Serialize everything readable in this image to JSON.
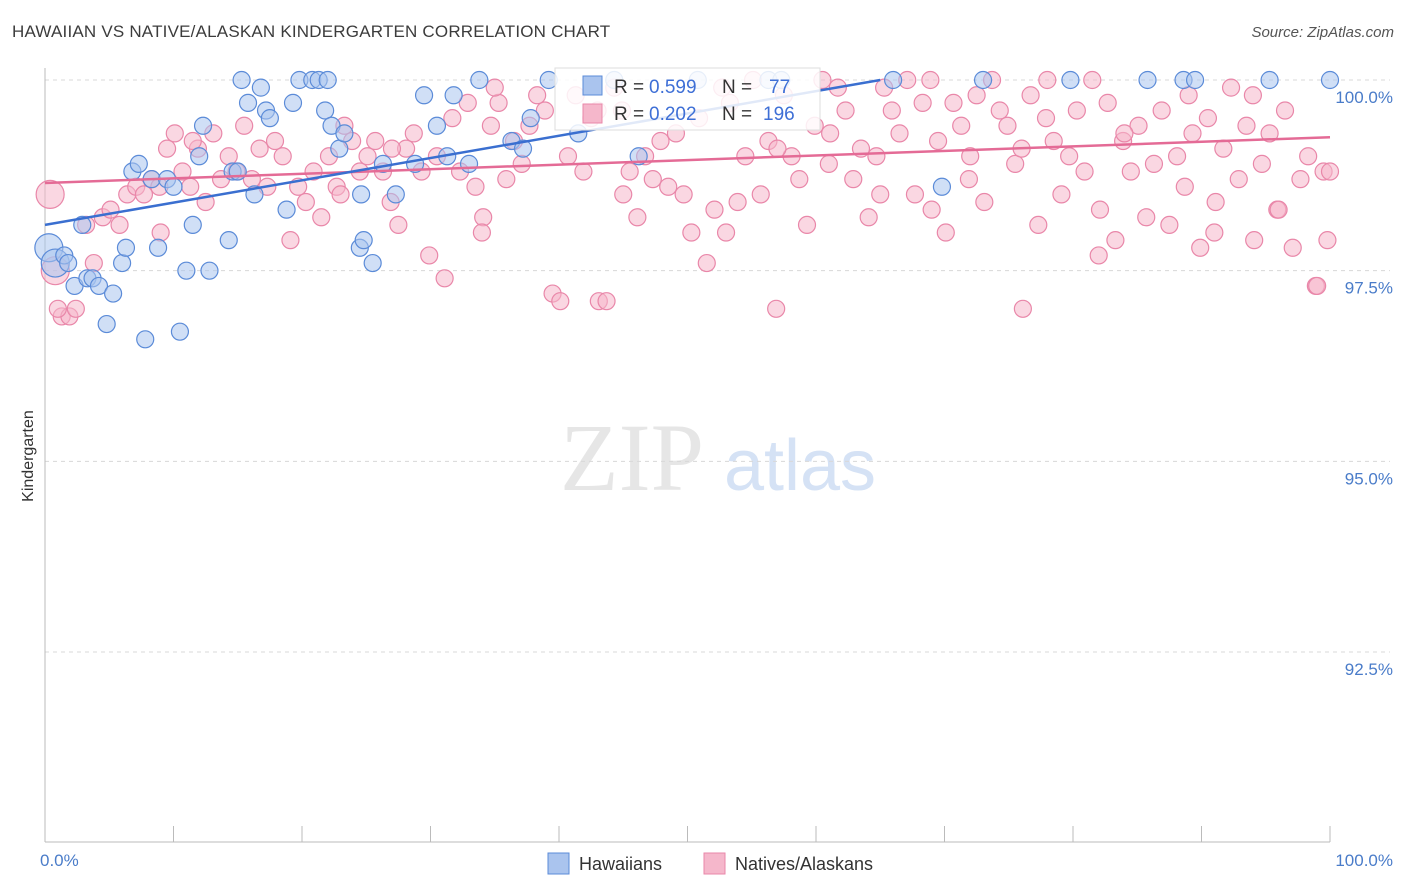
{
  "header": {
    "title": "HAWAIIAN VS NATIVE/ALASKAN KINDERGARTEN CORRELATION CHART",
    "source": "Source: ZipAtlas.com"
  },
  "watermark": {
    "zip": "ZIP",
    "atlas": "atlas"
  },
  "colors": {
    "hawaiians_fill": "#aac4ee",
    "hawaiians_stroke": "#5b8bd8",
    "hawaiians_line": "#3a6fd0",
    "natives_fill": "#f5b7cb",
    "natives_stroke": "#e987a9",
    "natives_line": "#e46b96",
    "tick_label": "#4a7cc9",
    "grid": "#d8d8d8"
  },
  "chart_data": {
    "type": "scatter",
    "title": "HAWAIIAN VS NATIVE/ALASKAN KINDERGARTEN CORRELATION CHART",
    "xlabel": "",
    "ylabel": "Kindergarten",
    "xlim": [
      0,
      100
    ],
    "ylim": [
      90.0,
      100.3
    ],
    "x_tick_labels": [
      "0.0%",
      "100.0%"
    ],
    "y_ticks": [
      92.5,
      95.0,
      97.5,
      100.0
    ],
    "y_tick_labels": [
      "92.5%",
      "95.0%",
      "97.5%",
      "100.0%"
    ],
    "grid": "horizontal dashed",
    "legend_position": "bottom-center",
    "series": [
      {
        "name": "Hawaiians",
        "R": "0.599",
        "N": "77",
        "trend": {
          "x": [
            0,
            65
          ],
          "y": [
            98.1,
            100.0
          ]
        },
        "points": [
          [
            0.3,
            97.8
          ],
          [
            0.8,
            97.6
          ],
          [
            1.5,
            97.7
          ],
          [
            1.8,
            97.6
          ],
          [
            2.3,
            97.3
          ],
          [
            2.9,
            98.1
          ],
          [
            3.3,
            97.4
          ],
          [
            3.7,
            97.4
          ],
          [
            4.2,
            97.3
          ],
          [
            4.8,
            96.8
          ],
          [
            5.3,
            97.2
          ],
          [
            6.0,
            97.6
          ],
          [
            6.3,
            97.8
          ],
          [
            6.8,
            98.8
          ],
          [
            7.3,
            98.9
          ],
          [
            7.8,
            96.6
          ],
          [
            8.3,
            98.7
          ],
          [
            8.8,
            97.8
          ],
          [
            9.5,
            98.7
          ],
          [
            10.0,
            98.6
          ],
          [
            10.5,
            96.7
          ],
          [
            11.0,
            97.5
          ],
          [
            11.5,
            98.1
          ],
          [
            12.0,
            99.0
          ],
          [
            12.3,
            99.4
          ],
          [
            12.8,
            97.5
          ],
          [
            14.3,
            97.9
          ],
          [
            14.6,
            98.8
          ],
          [
            15.0,
            98.8
          ],
          [
            15.3,
            100.0
          ],
          [
            15.8,
            99.7
          ],
          [
            16.3,
            98.5
          ],
          [
            16.8,
            99.9
          ],
          [
            17.2,
            99.6
          ],
          [
            17.5,
            99.5
          ],
          [
            18.8,
            98.3
          ],
          [
            19.3,
            99.7
          ],
          [
            19.8,
            100.0
          ],
          [
            20.8,
            100.0
          ],
          [
            21.3,
            100.0
          ],
          [
            21.8,
            99.6
          ],
          [
            22.0,
            100.0
          ],
          [
            22.3,
            99.4
          ],
          [
            22.9,
            99.1
          ],
          [
            23.3,
            99.3
          ],
          [
            24.5,
            97.8
          ],
          [
            24.8,
            97.9
          ],
          [
            24.6,
            98.5
          ],
          [
            25.5,
            97.6
          ],
          [
            26.3,
            98.9
          ],
          [
            27.3,
            98.5
          ],
          [
            28.8,
            98.9
          ],
          [
            29.5,
            99.8
          ],
          [
            30.5,
            99.4
          ],
          [
            31.3,
            99.0
          ],
          [
            31.8,
            99.8
          ],
          [
            33.0,
            98.9
          ],
          [
            33.8,
            100.0
          ],
          [
            36.3,
            99.2
          ],
          [
            37.2,
            99.1
          ],
          [
            37.8,
            99.5
          ],
          [
            39.2,
            100.0
          ],
          [
            41.5,
            99.3
          ],
          [
            44.3,
            100.0
          ],
          [
            46.2,
            99.0
          ],
          [
            50.8,
            100.0
          ],
          [
            56.3,
            100.0
          ],
          [
            57.3,
            100.0
          ],
          [
            66.0,
            100.0
          ],
          [
            69.8,
            98.6
          ],
          [
            73.0,
            100.0
          ],
          [
            79.8,
            100.0
          ],
          [
            85.8,
            100.0
          ],
          [
            88.6,
            100.0
          ],
          [
            89.5,
            100.0
          ],
          [
            95.3,
            100.0
          ],
          [
            100.0,
            100.0
          ]
        ]
      },
      {
        "name": "Natives/Alaskans",
        "R": "0.202",
        "N": "196",
        "trend": {
          "x": [
            0,
            100
          ],
          "y": [
            98.65,
            99.25
          ]
        },
        "points": [
          [
            0.4,
            98.5
          ],
          [
            0.8,
            97.5
          ],
          [
            1.3,
            96.9
          ],
          [
            1.9,
            96.9
          ],
          [
            2.4,
            97.0
          ],
          [
            3.2,
            98.1
          ],
          [
            3.8,
            97.6
          ],
          [
            4.5,
            98.2
          ],
          [
            5.1,
            98.3
          ],
          [
            5.8,
            98.1
          ],
          [
            6.4,
            98.5
          ],
          [
            7.1,
            98.6
          ],
          [
            7.7,
            98.5
          ],
          [
            8.3,
            98.7
          ],
          [
            8.9,
            98.6
          ],
          [
            9.5,
            99.1
          ],
          [
            10.1,
            99.3
          ],
          [
            10.7,
            98.8
          ],
          [
            11.3,
            98.6
          ],
          [
            11.9,
            99.1
          ],
          [
            12.5,
            98.4
          ],
          [
            13.1,
            99.3
          ],
          [
            13.7,
            98.7
          ],
          [
            14.3,
            99.0
          ],
          [
            14.9,
            98.8
          ],
          [
            15.5,
            99.4
          ],
          [
            16.1,
            98.7
          ],
          [
            16.7,
            99.1
          ],
          [
            17.3,
            98.6
          ],
          [
            17.9,
            99.2
          ],
          [
            18.5,
            99.0
          ],
          [
            19.1,
            97.9
          ],
          [
            19.7,
            98.6
          ],
          [
            20.3,
            98.4
          ],
          [
            20.9,
            98.8
          ],
          [
            21.5,
            98.2
          ],
          [
            22.1,
            99.0
          ],
          [
            22.7,
            98.6
          ],
          [
            23.3,
            99.4
          ],
          [
            23.9,
            99.2
          ],
          [
            24.5,
            98.8
          ],
          [
            25.1,
            99.0
          ],
          [
            25.7,
            99.2
          ],
          [
            26.3,
            98.8
          ],
          [
            26.9,
            98.4
          ],
          [
            27.5,
            98.1
          ],
          [
            28.1,
            99.1
          ],
          [
            28.7,
            99.3
          ],
          [
            29.3,
            98.8
          ],
          [
            29.9,
            97.7
          ],
          [
            30.5,
            99.0
          ],
          [
            31.1,
            97.4
          ],
          [
            31.7,
            99.5
          ],
          [
            32.3,
            98.8
          ],
          [
            32.9,
            99.7
          ],
          [
            33.5,
            98.6
          ],
          [
            34.1,
            98.2
          ],
          [
            34.7,
            99.4
          ],
          [
            35.3,
            99.7
          ],
          [
            35.9,
            98.7
          ],
          [
            36.5,
            99.2
          ],
          [
            37.1,
            98.9
          ],
          [
            37.7,
            99.4
          ],
          [
            38.3,
            99.8
          ],
          [
            38.9,
            99.6
          ],
          [
            39.5,
            97.2
          ],
          [
            40.1,
            97.1
          ],
          [
            40.7,
            99.0
          ],
          [
            41.3,
            99.8
          ],
          [
            41.9,
            98.8
          ],
          [
            42.5,
            99.5
          ],
          [
            43.1,
            97.1
          ],
          [
            43.7,
            97.1
          ],
          [
            44.3,
            99.9
          ],
          [
            44.9,
            99.6
          ],
          [
            45.5,
            98.8
          ],
          [
            46.1,
            98.2
          ],
          [
            46.7,
            99.0
          ],
          [
            47.3,
            98.7
          ],
          [
            47.9,
            99.2
          ],
          [
            48.5,
            98.6
          ],
          [
            49.1,
            99.3
          ],
          [
            49.7,
            98.5
          ],
          [
            50.3,
            98.0
          ],
          [
            50.9,
            99.5
          ],
          [
            51.5,
            97.6
          ],
          [
            52.1,
            98.3
          ],
          [
            52.7,
            99.9
          ],
          [
            53.3,
            99.7
          ],
          [
            53.9,
            98.4
          ],
          [
            54.5,
            99.0
          ],
          [
            55.1,
            100.0
          ],
          [
            55.7,
            98.5
          ],
          [
            56.3,
            99.2
          ],
          [
            56.9,
            97.0
          ],
          [
            57.5,
            99.8
          ],
          [
            58.1,
            99.0
          ],
          [
            58.7,
            98.7
          ],
          [
            59.3,
            98.1
          ],
          [
            59.9,
            99.4
          ],
          [
            60.5,
            100.0
          ],
          [
            61.1,
            99.3
          ],
          [
            61.7,
            99.9
          ],
          [
            62.3,
            99.6
          ],
          [
            62.9,
            98.7
          ],
          [
            63.5,
            99.1
          ],
          [
            64.1,
            98.2
          ],
          [
            64.7,
            99.0
          ],
          [
            65.3,
            99.9
          ],
          [
            65.9,
            99.6
          ],
          [
            66.5,
            99.3
          ],
          [
            67.1,
            100.0
          ],
          [
            67.7,
            98.5
          ],
          [
            68.3,
            99.7
          ],
          [
            68.9,
            100.0
          ],
          [
            69.5,
            99.2
          ],
          [
            70.1,
            98.0
          ],
          [
            70.7,
            99.7
          ],
          [
            71.3,
            99.4
          ],
          [
            71.9,
            98.7
          ],
          [
            72.5,
            99.8
          ],
          [
            73.1,
            98.4
          ],
          [
            73.7,
            100.0
          ],
          [
            74.3,
            99.6
          ],
          [
            74.9,
            99.4
          ],
          [
            75.5,
            98.9
          ],
          [
            76.1,
            97.0
          ],
          [
            76.7,
            99.8
          ],
          [
            77.3,
            98.1
          ],
          [
            77.9,
            99.5
          ],
          [
            78.5,
            99.2
          ],
          [
            79.1,
            98.5
          ],
          [
            79.7,
            99.0
          ],
          [
            80.3,
            99.6
          ],
          [
            80.9,
            98.8
          ],
          [
            81.5,
            100.0
          ],
          [
            82.1,
            98.3
          ],
          [
            82.7,
            99.7
          ],
          [
            83.3,
            97.9
          ],
          [
            83.9,
            99.2
          ],
          [
            84.5,
            98.8
          ],
          [
            85.1,
            99.4
          ],
          [
            85.7,
            98.2
          ],
          [
            86.3,
            98.9
          ],
          [
            86.9,
            99.6
          ],
          [
            87.5,
            98.1
          ],
          [
            88.1,
            99.0
          ],
          [
            88.7,
            98.6
          ],
          [
            89.3,
            99.3
          ],
          [
            89.9,
            97.8
          ],
          [
            90.5,
            99.5
          ],
          [
            91.1,
            98.4
          ],
          [
            91.7,
            99.1
          ],
          [
            92.3,
            99.9
          ],
          [
            92.9,
            98.7
          ],
          [
            93.5,
            99.4
          ],
          [
            94.1,
            97.9
          ],
          [
            94.7,
            98.9
          ],
          [
            95.3,
            99.3
          ],
          [
            95.9,
            98.3
          ],
          [
            96.5,
            99.6
          ],
          [
            97.1,
            97.8
          ],
          [
            97.7,
            98.7
          ],
          [
            98.3,
            99.0
          ],
          [
            98.9,
            97.3
          ],
          [
            99.5,
            98.8
          ],
          [
            99.8,
            97.9
          ],
          [
            1.0,
            97.0
          ],
          [
            9.0,
            98.0
          ],
          [
            27.0,
            99.1
          ],
          [
            34.0,
            98.0
          ],
          [
            45.0,
            98.5
          ],
          [
            53.0,
            98.0
          ],
          [
            61.0,
            98.9
          ],
          [
            69.0,
            98.3
          ],
          [
            76.0,
            99.1
          ],
          [
            82.0,
            97.7
          ],
          [
            91.0,
            98.0
          ],
          [
            96.0,
            98.3
          ],
          [
            11.5,
            99.2
          ],
          [
            23.0,
            98.5
          ],
          [
            35.0,
            99.9
          ],
          [
            43.0,
            99.6
          ],
          [
            57.0,
            99.1
          ],
          [
            65.0,
            98.5
          ],
          [
            72.0,
            99.0
          ],
          [
            78.0,
            100.0
          ],
          [
            84.0,
            99.3
          ],
          [
            89.0,
            99.8
          ],
          [
            94.0,
            99.8
          ],
          [
            100.0,
            98.8
          ],
          [
            99.0,
            97.3
          ]
        ]
      }
    ]
  },
  "legend": {
    "items": [
      {
        "label": "Hawaiians"
      },
      {
        "label": "Natives/Alaskans"
      }
    ],
    "stats": {
      "r_label": "R = ",
      "n_label": "N = ",
      "rows": [
        {
          "r": "0.599",
          "n": "77"
        },
        {
          "r": "0.202",
          "n": "196"
        }
      ]
    }
  }
}
